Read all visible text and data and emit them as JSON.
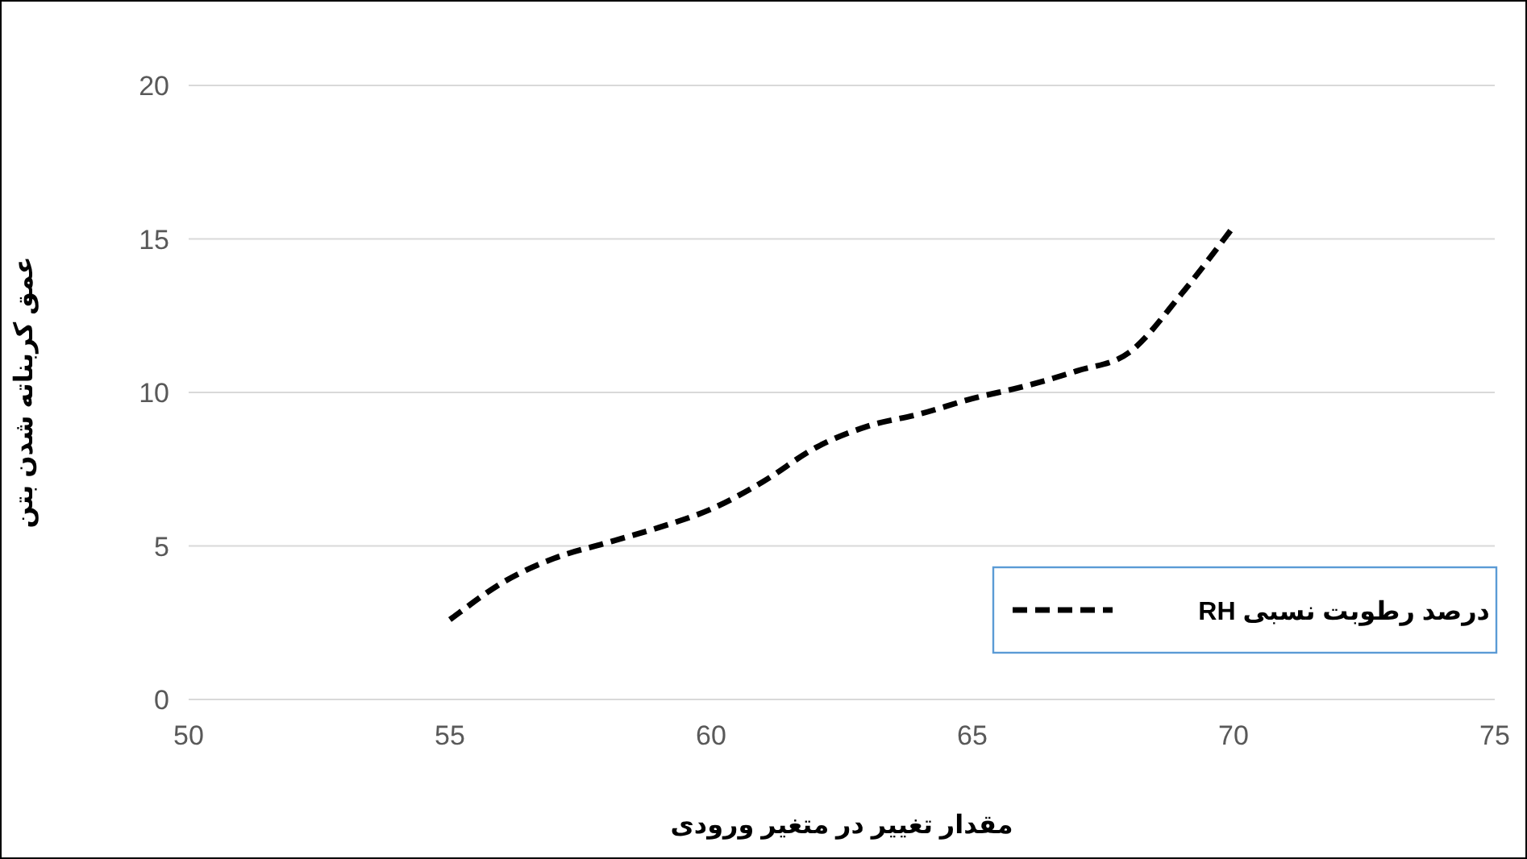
{
  "chart_data": {
    "type": "line",
    "xlabel": "مقدار تغییر در متغیر ورودی",
    "ylabel": "عمق کربناته شدن بتن",
    "x": [
      55,
      56,
      57,
      58,
      59,
      60,
      61,
      62,
      63,
      64,
      65,
      66,
      67,
      68,
      69,
      70
    ],
    "series": [
      {
        "name": "درصد رطوبت نسبی RH",
        "color": "#000000",
        "values": [
          2.6,
          3.8,
          4.6,
          5.1,
          5.6,
          6.2,
          7.1,
          8.2,
          8.9,
          9.3,
          9.8,
          10.2,
          10.7,
          11.3,
          13.2,
          15.4
        ]
      }
    ],
    "xlim": [
      50,
      75
    ],
    "ylim": [
      0,
      20
    ],
    "xticks": [
      50,
      55,
      60,
      65,
      70,
      75
    ],
    "yticks": [
      0,
      5,
      10,
      15,
      20
    ],
    "grid": "y",
    "legend": "bottom right",
    "line_style": "dashed",
    "marker": "none"
  }
}
